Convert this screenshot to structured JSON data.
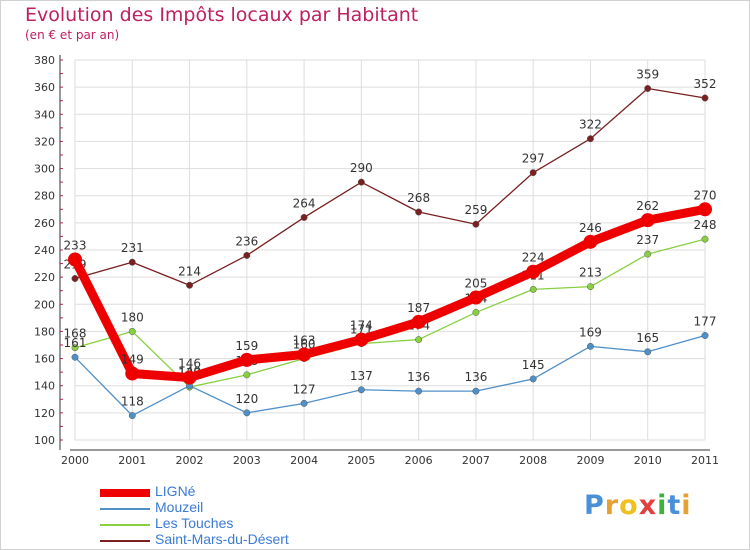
{
  "title": "Evolution des Impôts locaux par Habitant",
  "subtitle": "(en € et par an)",
  "logo": {
    "text": "Proxiti",
    "letters": [
      "P",
      "r",
      "o",
      "x",
      "i",
      "t",
      "i"
    ],
    "colors": [
      "#4a90d9",
      "#e8a030",
      "#f0c020",
      "#e04040",
      "#40b040",
      "#4a90d9",
      "#e8a030"
    ]
  },
  "chart_data": {
    "type": "line",
    "x": [
      "2000",
      "2001",
      "2002",
      "2003",
      "2004",
      "2005",
      "2006",
      "2007",
      "2008",
      "2009",
      "2010",
      "2011"
    ],
    "ylim": [
      100,
      380
    ],
    "yticks": [
      100,
      120,
      140,
      160,
      180,
      200,
      220,
      240,
      260,
      280,
      300,
      320,
      340,
      360,
      380
    ],
    "grid": true,
    "series": [
      {
        "name": "Saint-Mars-du-Désert",
        "color": "#7a2020",
        "values": [
          219,
          231,
          214,
          236,
          264,
          290,
          268,
          259,
          297,
          322,
          359,
          352
        ],
        "labels": [
          "219",
          "231",
          "214",
          "236",
          "264",
          "290",
          "268",
          "259",
          "297",
          "322",
          "359",
          "352"
        ]
      },
      {
        "name": "Les Touches",
        "color": "#88d040",
        "values": [
          168,
          180,
          139,
          148,
          160,
          171,
          174,
          194,
          211,
          213,
          237,
          248
        ],
        "labels": [
          "168",
          "180",
          "139",
          "148",
          "160",
          "171",
          "174",
          "194",
          "211",
          "213",
          "237",
          "248"
        ]
      },
      {
        "name": "Mouzeil",
        "color": "#5090c8",
        "values": [
          161,
          118,
          140,
          120,
          127,
          137,
          136,
          136,
          145,
          169,
          165,
          177
        ],
        "labels": [
          "161",
          "118",
          "140",
          "120",
          "127",
          "137",
          "136",
          "136",
          "145",
          "169",
          "165",
          "177"
        ]
      },
      {
        "name": "LIGNé",
        "color": "#ee0000",
        "values": [
          233,
          149,
          146,
          159,
          163,
          174,
          187,
          205,
          224,
          246,
          262,
          270
        ],
        "labels": [
          "233",
          "149",
          "146",
          "159",
          "163",
          "174",
          "187",
          "205",
          "224",
          "246",
          "262",
          "270"
        ]
      }
    ],
    "legend": [
      "LIGNé",
      "Mouzeil",
      "Les Touches",
      "Saint-Mars-du-Désert"
    ]
  }
}
